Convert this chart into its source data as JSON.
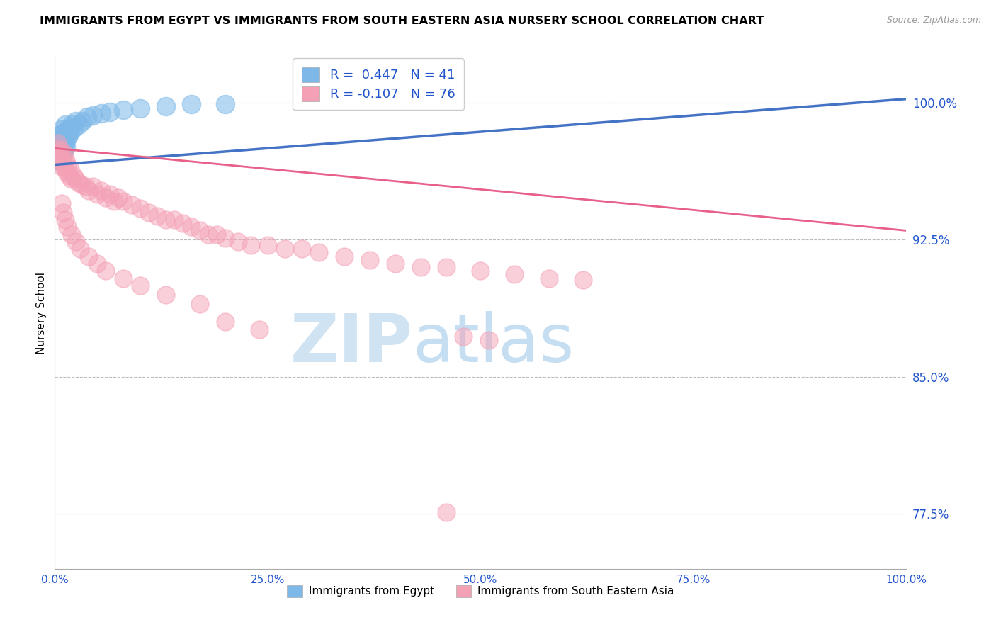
{
  "title": "IMMIGRANTS FROM EGYPT VS IMMIGRANTS FROM SOUTH EASTERN ASIA NURSERY SCHOOL CORRELATION CHART",
  "source_text": "Source: ZipAtlas.com",
  "ylabel": "Nursery School",
  "xlim": [
    0.0,
    1.0
  ],
  "ylim": [
    0.745,
    1.025
  ],
  "yticks": [
    1.0,
    0.925,
    0.85,
    0.775
  ],
  "ytick_labels": [
    "100.0%",
    "92.5%",
    "85.0%",
    "77.5%"
  ],
  "xticks": [
    0.0,
    0.25,
    0.5,
    0.75,
    1.0
  ],
  "xtick_labels": [
    "0.0%",
    "25.0%",
    "50.0%",
    "75.0%",
    "100.0%"
  ],
  "legend_labels": [
    "Immigrants from Egypt",
    "Immigrants from South Eastern Asia"
  ],
  "legend_r_egypt": "R =  0.447",
  "legend_n_egypt": "N = 41",
  "legend_r_sea": "R = -0.107",
  "legend_n_sea": "N = 76",
  "color_egypt": "#7db8e8",
  "color_sea": "#f4a0b5",
  "color_trend_egypt": "#4472c4",
  "color_trend_sea": "#e8608a",
  "watermark_zip": "ZIP",
  "watermark_atlas": "atlas",
  "egypt_x": [
    0.002,
    0.003,
    0.004,
    0.004,
    0.005,
    0.005,
    0.006,
    0.006,
    0.007,
    0.007,
    0.008,
    0.008,
    0.009,
    0.009,
    0.01,
    0.01,
    0.011,
    0.011,
    0.012,
    0.012,
    0.013,
    0.013,
    0.014,
    0.015,
    0.016,
    0.017,
    0.018,
    0.02,
    0.022,
    0.025,
    0.028,
    0.032,
    0.038,
    0.045,
    0.055,
    0.065,
    0.08,
    0.1,
    0.13,
    0.16,
    0.2
  ],
  "egypt_y": [
    0.972,
    0.975,
    0.968,
    0.98,
    0.972,
    0.982,
    0.97,
    0.978,
    0.973,
    0.985,
    0.971,
    0.979,
    0.974,
    0.983,
    0.972,
    0.98,
    0.975,
    0.982,
    0.978,
    0.988,
    0.976,
    0.984,
    0.98,
    0.985,
    0.982,
    0.986,
    0.984,
    0.988,
    0.986,
    0.99,
    0.988,
    0.99,
    0.992,
    0.993,
    0.994,
    0.995,
    0.996,
    0.997,
    0.998,
    0.999,
    0.999
  ],
  "sea_x": [
    0.002,
    0.003,
    0.004,
    0.005,
    0.006,
    0.007,
    0.008,
    0.009,
    0.01,
    0.011,
    0.012,
    0.013,
    0.014,
    0.015,
    0.016,
    0.018,
    0.02,
    0.022,
    0.025,
    0.028,
    0.032,
    0.036,
    0.04,
    0.045,
    0.05,
    0.055,
    0.06,
    0.065,
    0.07,
    0.075,
    0.08,
    0.09,
    0.1,
    0.11,
    0.12,
    0.13,
    0.14,
    0.15,
    0.16,
    0.17,
    0.18,
    0.19,
    0.2,
    0.215,
    0.23,
    0.25,
    0.27,
    0.29,
    0.31,
    0.34,
    0.37,
    0.4,
    0.43,
    0.46,
    0.5,
    0.54,
    0.58,
    0.62,
    0.2,
    0.24,
    0.17,
    0.13,
    0.1,
    0.08,
    0.06,
    0.05,
    0.04,
    0.03,
    0.025,
    0.02,
    0.015,
    0.012,
    0.01,
    0.008,
    0.48,
    0.51
  ],
  "sea_y": [
    0.975,
    0.978,
    0.97,
    0.972,
    0.968,
    0.974,
    0.965,
    0.97,
    0.966,
    0.972,
    0.964,
    0.968,
    0.962,
    0.966,
    0.96,
    0.964,
    0.958,
    0.96,
    0.958,
    0.956,
    0.955,
    0.954,
    0.952,
    0.954,
    0.95,
    0.952,
    0.948,
    0.95,
    0.946,
    0.948,
    0.946,
    0.944,
    0.942,
    0.94,
    0.938,
    0.936,
    0.936,
    0.934,
    0.932,
    0.93,
    0.928,
    0.928,
    0.926,
    0.924,
    0.922,
    0.922,
    0.92,
    0.92,
    0.918,
    0.916,
    0.914,
    0.912,
    0.91,
    0.91,
    0.908,
    0.906,
    0.904,
    0.903,
    0.88,
    0.876,
    0.89,
    0.895,
    0.9,
    0.904,
    0.908,
    0.912,
    0.916,
    0.92,
    0.924,
    0.928,
    0.932,
    0.936,
    0.94,
    0.945,
    0.872,
    0.87
  ],
  "sea_outlier_x": [
    0.46
  ],
  "sea_outlier_y": [
    0.776
  ],
  "trend_egypt_x0": 0.0,
  "trend_egypt_x1": 1.0,
  "trend_egypt_y0": 0.966,
  "trend_egypt_y1": 1.002,
  "trend_sea_x0": 0.0,
  "trend_sea_x1": 1.0,
  "trend_sea_y0": 0.975,
  "trend_sea_y1": 0.93
}
